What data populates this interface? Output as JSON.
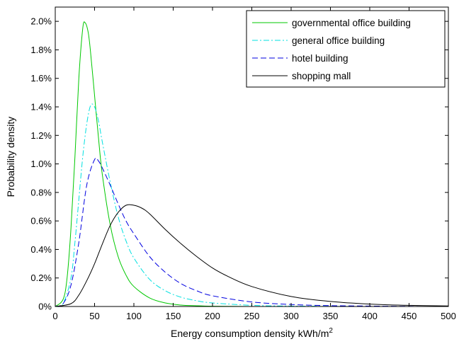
{
  "chart_data": {
    "type": "line",
    "title": "",
    "xlabel": "Energy consumption density kWh/m",
    "xlabel_superscript": "2",
    "ylabel": "Probability density",
    "xlim": [
      0,
      500
    ],
    "ylim": [
      0,
      0.021
    ],
    "x_ticks": [
      0,
      50,
      100,
      150,
      200,
      250,
      300,
      350,
      400,
      450,
      500
    ],
    "x_tick_labels": [
      "0",
      "50",
      "100",
      "150",
      "200",
      "250",
      "300",
      "350",
      "400",
      "450",
      "500"
    ],
    "y_ticks": [
      0,
      0.002,
      0.004,
      0.006,
      0.008,
      0.01,
      0.012,
      0.014,
      0.016,
      0.018,
      0.02
    ],
    "y_tick_labels": [
      "0%",
      "0.2%",
      "0.4%",
      "0.6%",
      "0.8%",
      "1.0%",
      "1.2%",
      "1.4%",
      "1.6%",
      "1.8%",
      "2.0%"
    ],
    "grid": false,
    "legend_position": "top-right",
    "series": [
      {
        "name": "governmental office building",
        "color": "#00c800",
        "dash": "solid",
        "points": [
          [
            0,
            0
          ],
          [
            10,
            0.0005
          ],
          [
            15,
            0.002
          ],
          [
            20,
            0.0055
          ],
          [
            25,
            0.0105
          ],
          [
            30,
            0.016
          ],
          [
            35,
            0.0195
          ],
          [
            38,
            0.0199
          ],
          [
            42,
            0.0192
          ],
          [
            45,
            0.0178
          ],
          [
            50,
            0.0148
          ],
          [
            55,
            0.0118
          ],
          [
            60,
            0.0092
          ],
          [
            70,
            0.0057
          ],
          [
            80,
            0.0035
          ],
          [
            90,
            0.0022
          ],
          [
            100,
            0.0014
          ],
          [
            120,
            0.0006
          ],
          [
            140,
            0.00025
          ],
          [
            160,
            0.0001
          ],
          [
            180,
            5e-05
          ],
          [
            200,
            2e-05
          ],
          [
            250,
            0
          ],
          [
            300,
            0
          ]
        ]
      },
      {
        "name": "general office building",
        "color": "#00e0e0",
        "dash": "dashdot",
        "points": [
          [
            0,
            0
          ],
          [
            10,
            0.0002
          ],
          [
            20,
            0.002
          ],
          [
            25,
            0.0045
          ],
          [
            30,
            0.0075
          ],
          [
            35,
            0.0105
          ],
          [
            40,
            0.0128
          ],
          [
            45,
            0.0141
          ],
          [
            50,
            0.014
          ],
          [
            55,
            0.013
          ],
          [
            60,
            0.0115
          ],
          [
            70,
            0.0087
          ],
          [
            80,
            0.0063
          ],
          [
            90,
            0.0046
          ],
          [
            100,
            0.0034
          ],
          [
            120,
            0.0019
          ],
          [
            140,
            0.0011
          ],
          [
            160,
            0.00065
          ],
          [
            180,
            0.0004
          ],
          [
            200,
            0.00025
          ],
          [
            250,
            8e-05
          ],
          [
            300,
            3e-05
          ],
          [
            350,
            1e-05
          ],
          [
            400,
            0
          ]
        ]
      },
      {
        "name": "hotel building",
        "color": "#0000e0",
        "dash": "dashed",
        "points": [
          [
            0,
            0
          ],
          [
            10,
            0.0002
          ],
          [
            20,
            0.0015
          ],
          [
            30,
            0.0045
          ],
          [
            40,
            0.0085
          ],
          [
            50,
            0.0103
          ],
          [
            55,
            0.0102
          ],
          [
            60,
            0.0097
          ],
          [
            70,
            0.0085
          ],
          [
            80,
            0.0072
          ],
          [
            90,
            0.006
          ],
          [
            100,
            0.0051
          ],
          [
            120,
            0.0035
          ],
          [
            140,
            0.0024
          ],
          [
            160,
            0.0016
          ],
          [
            180,
            0.0011
          ],
          [
            200,
            0.00075
          ],
          [
            250,
            0.00032
          ],
          [
            300,
            0.00014
          ],
          [
            350,
            6e-05
          ],
          [
            400,
            3e-05
          ],
          [
            450,
            1e-05
          ],
          [
            470,
            0
          ]
        ]
      },
      {
        "name": "shopping mall",
        "color": "#000000",
        "dash": "solid",
        "points": [
          [
            0,
            0
          ],
          [
            20,
            0.0002
          ],
          [
            30,
            0.0008
          ],
          [
            40,
            0.0018
          ],
          [
            50,
            0.003
          ],
          [
            60,
            0.0044
          ],
          [
            70,
            0.0057
          ],
          [
            80,
            0.0066
          ],
          [
            90,
            0.0071
          ],
          [
            100,
            0.0071
          ],
          [
            110,
            0.0069
          ],
          [
            120,
            0.0065
          ],
          [
            140,
            0.0054
          ],
          [
            160,
            0.0044
          ],
          [
            180,
            0.0035
          ],
          [
            200,
            0.0027
          ],
          [
            220,
            0.0021
          ],
          [
            250,
            0.0014
          ],
          [
            300,
            0.0007
          ],
          [
            350,
            0.00035
          ],
          [
            400,
            0.00017
          ],
          [
            450,
            8e-05
          ],
          [
            500,
            4e-05
          ]
        ]
      }
    ]
  }
}
